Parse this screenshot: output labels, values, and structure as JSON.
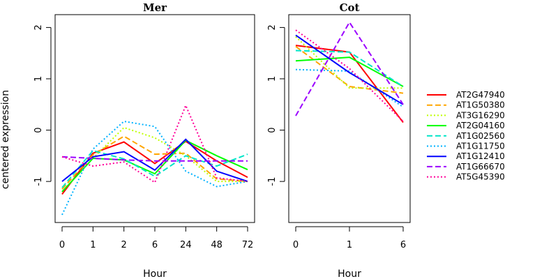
{
  "chart_data": {
    "type": "line",
    "ylabel": "centered expression",
    "ylim": [
      -1.8,
      2.25
    ],
    "yticks": [
      -1,
      0,
      1,
      2
    ],
    "grid": false,
    "legend_position": "right",
    "panels": [
      {
        "title": "Mer",
        "xlabel": "Hour",
        "categories": [
          "0",
          "1",
          "2",
          "6",
          "24",
          "48",
          "72"
        ],
        "series": [
          {
            "name": "AT2G47940",
            "color": "#ff0000",
            "dash": "solid",
            "values": [
              -1.25,
              -0.45,
              -0.23,
              -0.65,
              -0.22,
              -0.6,
              -0.92
            ]
          },
          {
            "name": "AT1G50380",
            "color": "#ffa500",
            "dash": "dashed",
            "values": [
              -1.15,
              -0.48,
              -0.12,
              -0.47,
              -0.45,
              -0.95,
              -1.0
            ]
          },
          {
            "name": "AT3G16290",
            "color": "#bfff00",
            "dash": "dotted",
            "values": [
              -1.2,
              -0.55,
              0.05,
              -0.15,
              -0.5,
              -1.0,
              -1.0
            ]
          },
          {
            "name": "AT2G04160",
            "color": "#00ff00",
            "dash": "solid",
            "values": [
              -1.2,
              -0.55,
              -0.58,
              -0.85,
              -0.2,
              -0.5,
              -0.77
            ]
          },
          {
            "name": "AT1G02560",
            "color": "#00e5c8",
            "dash": "dashed",
            "values": [
              -1.12,
              -0.4,
              -0.56,
              -0.9,
              -0.5,
              -0.7,
              -0.47
            ]
          },
          {
            "name": "AT1G11750",
            "color": "#00b2ff",
            "dash": "dotted",
            "values": [
              -1.65,
              -0.37,
              0.17,
              0.07,
              -0.8,
              -1.1,
              -1.0
            ]
          },
          {
            "name": "AT1G12410",
            "color": "#0000ff",
            "dash": "solid",
            "values": [
              -1.0,
              -0.52,
              -0.42,
              -0.78,
              -0.18,
              -0.8,
              -1.0
            ]
          },
          {
            "name": "AT1G66670",
            "color": "#9b00ff",
            "dash": "dashed",
            "values": [
              -0.52,
              -0.55,
              -0.58,
              -0.6,
              -0.6,
              -0.6,
              -0.6
            ]
          },
          {
            "name": "AT5G45390",
            "color": "#ff0099",
            "dash": "dotted",
            "values": [
              -0.52,
              -0.7,
              -0.62,
              -1.02,
              0.48,
              -0.93,
              -1.0
            ]
          }
        ]
      },
      {
        "title": "Cot",
        "xlabel": "Hour",
        "categories": [
          "0",
          "1",
          "6"
        ],
        "series": [
          {
            "name": "AT2G47940",
            "color": "#ff0000",
            "dash": "solid",
            "values": [
              1.65,
              1.52,
              0.15
            ]
          },
          {
            "name": "AT1G50380",
            "color": "#ffa500",
            "dash": "dashed",
            "values": [
              1.63,
              0.85,
              0.72
            ]
          },
          {
            "name": "AT3G16290",
            "color": "#bfff00",
            "dash": "dotted",
            "values": [
              1.82,
              0.82,
              0.82
            ]
          },
          {
            "name": "AT2G04160",
            "color": "#00ff00",
            "dash": "solid",
            "values": [
              1.35,
              1.42,
              0.85
            ]
          },
          {
            "name": "AT1G02560",
            "color": "#00e5c8",
            "dash": "dashed",
            "values": [
              1.55,
              1.52,
              0.85
            ]
          },
          {
            "name": "AT1G11750",
            "color": "#00b2ff",
            "dash": "dotted",
            "values": [
              1.18,
              1.15,
              0.45
            ]
          },
          {
            "name": "AT1G12410",
            "color": "#0000ff",
            "dash": "solid",
            "values": [
              1.85,
              1.12,
              0.5
            ]
          },
          {
            "name": "AT1G66670",
            "color": "#9b00ff",
            "dash": "dashed",
            "values": [
              0.28,
              2.1,
              0.5
            ]
          },
          {
            "name": "AT5G45390",
            "color": "#ff0099",
            "dash": "dotted",
            "values": [
              1.95,
              1.2,
              0.17
            ]
          }
        ]
      }
    ]
  }
}
